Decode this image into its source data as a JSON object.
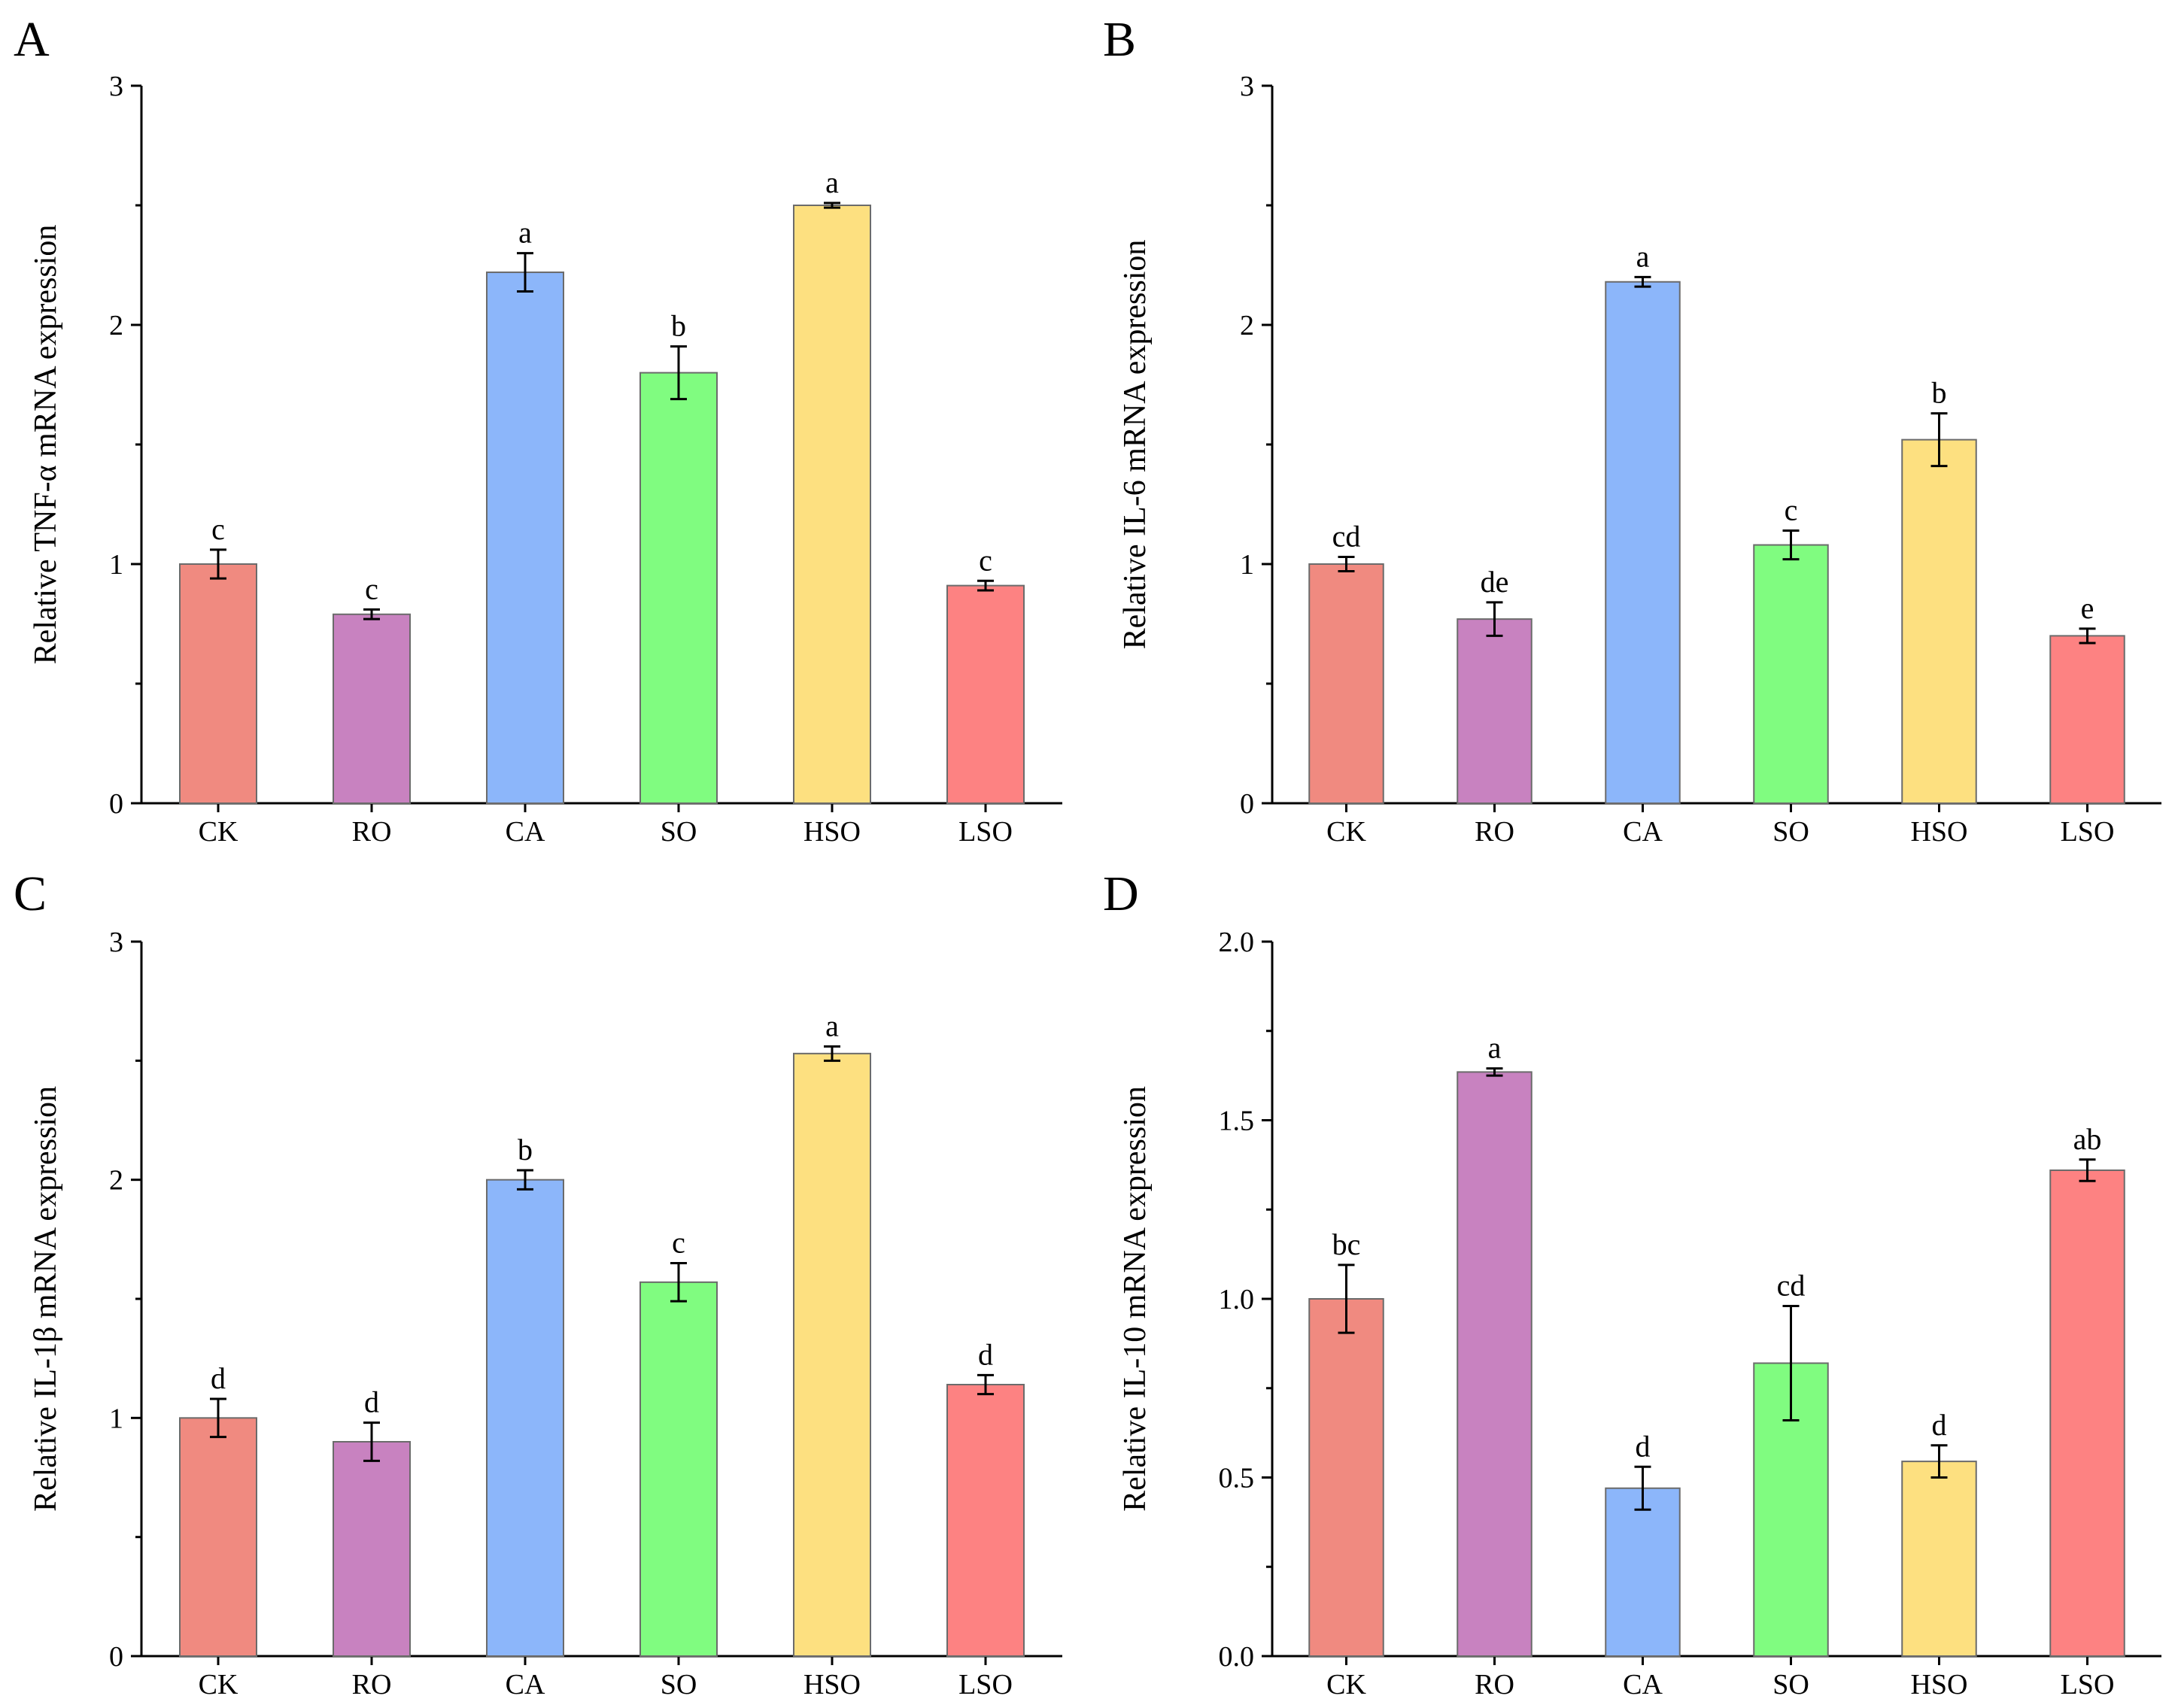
{
  "chart_data": [
    {
      "type": "bar",
      "panel": "A",
      "categories": [
        "CK",
        "RO",
        "CA",
        "SO",
        "HSO",
        "LSO"
      ],
      "values": [
        1.0,
        0.79,
        2.22,
        1.8,
        2.5,
        0.91
      ],
      "errors": [
        0.06,
        0.02,
        0.08,
        0.11,
        0.01,
        0.02
      ],
      "significance": [
        "c",
        "c",
        "a",
        "b",
        "a",
        "c"
      ],
      "colors": [
        "#F08A80",
        "#C882C0",
        "#8CB6FA",
        "#80FC80",
        "#FDE080",
        "#FD8282"
      ],
      "ylabel": "Relative TNF-α mRNA expression",
      "ylim": [
        0,
        3
      ],
      "yticks": [
        "0",
        "1",
        "2",
        "3"
      ]
    },
    {
      "type": "bar",
      "panel": "B",
      "categories": [
        "CK",
        "RO",
        "CA",
        "SO",
        "HSO",
        "LSO"
      ],
      "values": [
        1.0,
        0.77,
        2.18,
        1.08,
        1.52,
        0.7
      ],
      "errors": [
        0.03,
        0.07,
        0.02,
        0.06,
        0.11,
        0.03
      ],
      "significance": [
        "cd",
        "de",
        "a",
        "c",
        "b",
        "e"
      ],
      "colors": [
        "#F08A80",
        "#C882C0",
        "#8CB6FA",
        "#80FC80",
        "#FDE080",
        "#FD8282"
      ],
      "ylabel": "Relative IL-6 mRNA expression",
      "ylim": [
        0,
        3
      ],
      "yticks": [
        "0",
        "1",
        "2",
        "3"
      ]
    },
    {
      "type": "bar",
      "panel": "C",
      "categories": [
        "CK",
        "RO",
        "CA",
        "SO",
        "HSO",
        "LSO"
      ],
      "values": [
        1.0,
        0.9,
        2.0,
        1.57,
        2.53,
        1.14
      ],
      "errors": [
        0.08,
        0.08,
        0.04,
        0.08,
        0.03,
        0.04
      ],
      "significance": [
        "d",
        "d",
        "b",
        "c",
        "a",
        "d"
      ],
      "colors": [
        "#F08A80",
        "#C882C0",
        "#8CB6FA",
        "#80FC80",
        "#FDE080",
        "#FD8282"
      ],
      "ylabel": "Relative IL-1β mRNA expression",
      "ylim": [
        0,
        3
      ],
      "yticks": [
        "0",
        "1",
        "2",
        "3"
      ]
    },
    {
      "type": "bar",
      "panel": "D",
      "categories": [
        "CK",
        "RO",
        "CA",
        "SO",
        "HSO",
        "LSO"
      ],
      "values": [
        1.0,
        1.635,
        0.47,
        0.82,
        0.545,
        1.36
      ],
      "errors": [
        0.095,
        0.01,
        0.06,
        0.16,
        0.045,
        0.03
      ],
      "significance": [
        "bc",
        "a",
        "d",
        "cd",
        "d",
        "ab"
      ],
      "colors": [
        "#F08A80",
        "#C882C0",
        "#8CB6FA",
        "#80FC80",
        "#FDE080",
        "#FD8282"
      ],
      "ylabel": "Relative IL-10 mRNA expression",
      "ylim": [
        0,
        2
      ],
      "yticks": [
        "0.0",
        "0.5",
        "1.0",
        "1.5",
        "2.0"
      ]
    }
  ]
}
